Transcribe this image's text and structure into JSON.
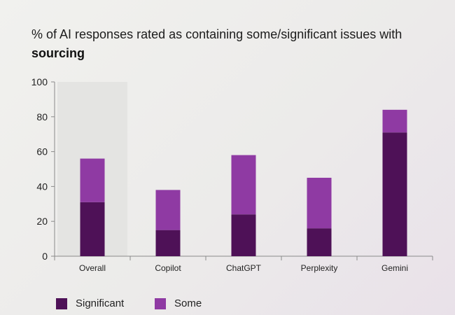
{
  "header": {
    "title_prefix": "% of AI responses rated as containing some/significant issues with ",
    "title_emphasis": "sourcing"
  },
  "colors": {
    "significant": "#4e1157",
    "some": "#8f3aa3",
    "highlight": "#e4e4e2",
    "axis": "#8a8a8a"
  },
  "legend": {
    "significant_label": "Significant",
    "some_label": "Some"
  },
  "chart_data": {
    "type": "bar",
    "stacked": true,
    "title": "% of AI responses rated as containing some/significant issues with sourcing",
    "categories": [
      "Overall",
      "Copilot",
      "ChatGPT",
      "Perplexity",
      "Gemini"
    ],
    "series": [
      {
        "name": "Significant",
        "values": [
          31,
          15,
          24,
          16,
          71
        ]
      },
      {
        "name": "Some",
        "values": [
          25,
          23,
          34,
          29,
          13
        ]
      }
    ],
    "highlighted_category": "Overall",
    "ylim": [
      0,
      100
    ],
    "yticks": [
      0,
      20,
      40,
      60,
      80,
      100
    ],
    "xlabel": "",
    "ylabel": "",
    "legend_position": "bottom-left"
  }
}
